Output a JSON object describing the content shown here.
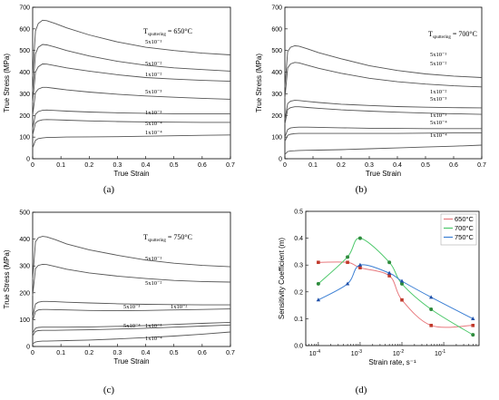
{
  "chart_data": [
    {
      "panel": "(a)",
      "type": "line",
      "xlabel": "True Strain",
      "ylabel": "True Stress (MPa)",
      "xlim": [
        0,
        0.7
      ],
      "ylim": [
        0,
        700
      ],
      "xticks": [
        0,
        0.1,
        0.2,
        0.3,
        0.4,
        0.5,
        0.6,
        0.7
      ],
      "yticks": [
        0,
        100,
        200,
        300,
        400,
        500,
        600,
        700
      ],
      "annotation": {
        "main": "T",
        "sub": "sputtering",
        "tail": " = 650°C"
      },
      "series": [
        {
          "label": "5x10⁻¹",
          "x": [
            0,
            0.01,
            0.02,
            0.035,
            0.05,
            0.08,
            0.12,
            0.2,
            0.3,
            0.4,
            0.5,
            0.6,
            0.7
          ],
          "y": [
            380,
            590,
            625,
            640,
            638,
            625,
            605,
            572,
            540,
            515,
            500,
            488,
            480
          ]
        },
        {
          "label": "5x10⁻²",
          "x": [
            0,
            0.01,
            0.02,
            0.035,
            0.05,
            0.08,
            0.12,
            0.2,
            0.3,
            0.4,
            0.5,
            0.6,
            0.7
          ],
          "y": [
            310,
            485,
            515,
            528,
            526,
            516,
            500,
            475,
            450,
            432,
            420,
            412,
            405
          ]
        },
        {
          "label": "1x10⁻²",
          "x": [
            0,
            0.01,
            0.02,
            0.035,
            0.05,
            0.08,
            0.12,
            0.2,
            0.3,
            0.4,
            0.5,
            0.6,
            0.7
          ],
          "y": [
            260,
            400,
            425,
            438,
            437,
            430,
            420,
            405,
            388,
            375,
            368,
            362,
            358
          ]
        },
        {
          "label": "5x10⁻³",
          "x": [
            0,
            0.01,
            0.02,
            0.035,
            0.05,
            0.08,
            0.12,
            0.2,
            0.3,
            0.4,
            0.5,
            0.6,
            0.7
          ],
          "y": [
            200,
            305,
            322,
            330,
            330,
            325,
            318,
            308,
            298,
            290,
            284,
            279,
            275
          ]
        },
        {
          "label": "1x10⁻³",
          "x": [
            0,
            0.01,
            0.02,
            0.035,
            0.05,
            0.08,
            0.12,
            0.2,
            0.3,
            0.4,
            0.5,
            0.6,
            0.7
          ],
          "y": [
            140,
            205,
            218,
            224,
            225,
            223,
            220,
            216,
            212,
            210,
            208,
            208,
            208
          ]
        },
        {
          "label": "5x10⁻⁴",
          "x": [
            0,
            0.01,
            0.02,
            0.035,
            0.05,
            0.08,
            0.12,
            0.2,
            0.3,
            0.4,
            0.5,
            0.6,
            0.7
          ],
          "y": [
            110,
            165,
            175,
            180,
            181,
            180,
            178,
            175,
            172,
            170,
            169,
            168,
            168
          ]
        },
        {
          "label": "1x10⁻⁴",
          "x": [
            0,
            0.01,
            0.02,
            0.035,
            0.05,
            0.08,
            0.12,
            0.2,
            0.3,
            0.4,
            0.5,
            0.6,
            0.7
          ],
          "y": [
            50,
            85,
            93,
            96,
            98,
            99,
            100,
            101,
            102,
            104,
            106,
            108,
            110
          ]
        }
      ]
    },
    {
      "panel": "(b)",
      "type": "line",
      "xlabel": "True Strain",
      "ylabel": "True Stress (MPa)",
      "xlim": [
        0,
        0.7
      ],
      "ylim": [
        0,
        700
      ],
      "xticks": [
        0,
        0.1,
        0.2,
        0.3,
        0.4,
        0.5,
        0.6,
        0.7
      ],
      "yticks": [
        0,
        100,
        200,
        300,
        400,
        500,
        600,
        700
      ],
      "annotation": {
        "main": "T",
        "sub": "sputtering",
        "tail": " = 700°C"
      },
      "series": [
        {
          "label": "5x10⁻¹",
          "x": [
            0,
            0.01,
            0.02,
            0.035,
            0.05,
            0.08,
            0.12,
            0.2,
            0.3,
            0.4,
            0.5,
            0.6,
            0.7
          ],
          "y": [
            330,
            495,
            515,
            522,
            520,
            508,
            490,
            462,
            430,
            408,
            392,
            382,
            375
          ]
        },
        {
          "label": "5x10⁻²",
          "x": [
            0,
            0.01,
            0.02,
            0.035,
            0.05,
            0.08,
            0.12,
            0.2,
            0.3,
            0.4,
            0.5,
            0.6,
            0.7
          ],
          "y": [
            280,
            420,
            438,
            445,
            443,
            432,
            418,
            395,
            372,
            356,
            345,
            337,
            332
          ]
        },
        {
          "label": "1x10⁻²",
          "x": [
            0,
            0.01,
            0.02,
            0.035,
            0.05,
            0.08,
            0.12,
            0.2,
            0.3,
            0.4,
            0.5,
            0.6,
            0.7
          ],
          "y": [
            180,
            255,
            266,
            270,
            269,
            265,
            260,
            252,
            246,
            241,
            238,
            236,
            235
          ]
        },
        {
          "label": "5x10⁻³",
          "x": [
            0,
            0.01,
            0.02,
            0.035,
            0.05,
            0.08,
            0.12,
            0.2,
            0.3,
            0.4,
            0.5,
            0.6,
            0.7
          ],
          "y": [
            160,
            228,
            236,
            240,
            240,
            237,
            233,
            226,
            220,
            215,
            211,
            208,
            205
          ]
        },
        {
          "label": "1x10⁻³",
          "x": [
            0,
            0.01,
            0.02,
            0.035,
            0.05,
            0.08,
            0.12,
            0.2,
            0.3,
            0.4,
            0.5,
            0.6,
            0.7
          ],
          "y": [
            100,
            135,
            142,
            145,
            146,
            146,
            145,
            143,
            141,
            140,
            139,
            139,
            139
          ]
        },
        {
          "label": "5x10⁻⁴",
          "x": [
            0,
            0.01,
            0.02,
            0.035,
            0.05,
            0.08,
            0.12,
            0.2,
            0.3,
            0.4,
            0.5,
            0.6,
            0.7
          ],
          "y": [
            80,
            108,
            113,
            116,
            117,
            117,
            117,
            117,
            117,
            117,
            118,
            119,
            120
          ]
        },
        {
          "label": "1x10⁻⁴",
          "x": [
            0,
            0.01,
            0.02,
            0.035,
            0.05,
            0.08,
            0.12,
            0.2,
            0.3,
            0.4,
            0.5,
            0.6,
            0.7
          ],
          "y": [
            20,
            33,
            36,
            37,
            38,
            39,
            40,
            42,
            46,
            50,
            54,
            58,
            63
          ]
        }
      ]
    },
    {
      "panel": "(c)",
      "type": "line",
      "xlabel": "True Strain",
      "ylabel": "True Stress (MPa)",
      "xlim": [
        0,
        0.7
      ],
      "ylim": [
        0,
        500
      ],
      "xticks": [
        0,
        0.1,
        0.2,
        0.3,
        0.4,
        0.5,
        0.6,
        0.7
      ],
      "yticks": [
        0,
        100,
        200,
        300,
        400,
        500
      ],
      "annotation": {
        "main": "T",
        "sub": "sputtering",
        "tail": " = 750°C"
      },
      "series": [
        {
          "label": "5x10⁻¹",
          "x": [
            0,
            0.01,
            0.02,
            0.035,
            0.05,
            0.08,
            0.12,
            0.2,
            0.3,
            0.4,
            0.5,
            0.6,
            0.7
          ],
          "y": [
            250,
            390,
            405,
            410,
            408,
            398,
            382,
            360,
            340,
            322,
            310,
            302,
            297
          ]
        },
        {
          "label": "5x10⁻²",
          "x": [
            0,
            0.01,
            0.02,
            0.035,
            0.05,
            0.08,
            0.12,
            0.2,
            0.3,
            0.4,
            0.5,
            0.6,
            0.7
          ],
          "y": [
            190,
            290,
            302,
            306,
            305,
            298,
            288,
            274,
            262,
            253,
            246,
            242,
            240
          ]
        },
        {
          "label": "1x10⁻²",
          "x": [
            0,
            0.01,
            0.02,
            0.035,
            0.05,
            0.08,
            0.12,
            0.2,
            0.3,
            0.4,
            0.5,
            0.6,
            0.7
          ],
          "y": [
            110,
            158,
            165,
            168,
            168,
            167,
            165,
            162,
            159,
            157,
            156,
            155,
            155
          ]
        },
        {
          "label": "5x10⁻³",
          "x": [
            0,
            0.01,
            0.02,
            0.035,
            0.05,
            0.08,
            0.12,
            0.2,
            0.3,
            0.4,
            0.5,
            0.6,
            0.7
          ],
          "y": [
            95,
            130,
            136,
            138,
            138,
            137,
            136,
            134,
            133,
            134,
            136,
            138,
            140
          ]
        },
        {
          "label": "1x10⁻³",
          "x": [
            0,
            0.01,
            0.02,
            0.035,
            0.05,
            0.08,
            0.12,
            0.2,
            0.3,
            0.4,
            0.5,
            0.6,
            0.7
          ],
          "y": [
            50,
            68,
            71,
            72,
            72,
            72,
            72,
            73,
            75,
            78,
            82,
            86,
            90
          ]
        },
        {
          "label": "5x10⁻⁴",
          "x": [
            0,
            0.01,
            0.02,
            0.035,
            0.05,
            0.08,
            0.12,
            0.2,
            0.3,
            0.4,
            0.5,
            0.6,
            0.7
          ],
          "y": [
            40,
            56,
            59,
            60,
            60,
            60,
            61,
            62,
            65,
            68,
            72,
            76,
            80
          ]
        },
        {
          "label": "1x10⁻⁴",
          "x": [
            0,
            0.01,
            0.02,
            0.035,
            0.05,
            0.08,
            0.12,
            0.2,
            0.3,
            0.4,
            0.5,
            0.6,
            0.7
          ],
          "y": [
            10,
            17,
            19,
            20,
            20,
            21,
            22,
            24,
            28,
            33,
            39,
            46,
            54
          ]
        }
      ]
    },
    {
      "panel": "(d)",
      "type": "scatter",
      "xlabel": "Strain rate, s⁻¹",
      "ylabel": "Sensitivity Coefficient (m)",
      "xscale": "log",
      "xlim": [
        5e-05,
        0.7
      ],
      "ylim": [
        0,
        0.5
      ],
      "yticks": [
        0.0,
        0.1,
        0.2,
        0.3,
        0.4,
        0.5
      ],
      "xticks": [
        {
          "value": 0.0001,
          "exp": "-4"
        },
        {
          "value": 0.001,
          "exp": "-3"
        },
        {
          "value": 0.01,
          "exp": "-2"
        },
        {
          "value": 0.1,
          "exp": "-1"
        }
      ],
      "legend_position": "top-right",
      "series": [
        {
          "name": "650°C",
          "color": "#e8797e",
          "marker": "square",
          "x": [
            0.0001,
            0.0005,
            0.001,
            0.005,
            0.01,
            0.05,
            0.5
          ],
          "y": [
            0.31,
            0.31,
            0.29,
            0.26,
            0.17,
            0.075,
            0.075
          ]
        },
        {
          "name": "700°C",
          "color": "#4cc86a",
          "marker": "circle",
          "x": [
            0.0001,
            0.0005,
            0.001,
            0.005,
            0.01,
            0.05,
            0.5
          ],
          "y": [
            0.23,
            0.33,
            0.4,
            0.31,
            0.23,
            0.135,
            0.04
          ]
        },
        {
          "name": "750°C",
          "color": "#3b7fd4",
          "marker": "triangle",
          "x": [
            0.0001,
            0.0005,
            0.001,
            0.005,
            0.01,
            0.05,
            0.5
          ],
          "y": [
            0.17,
            0.23,
            0.3,
            0.27,
            0.24,
            0.18,
            0.1
          ]
        }
      ]
    }
  ]
}
